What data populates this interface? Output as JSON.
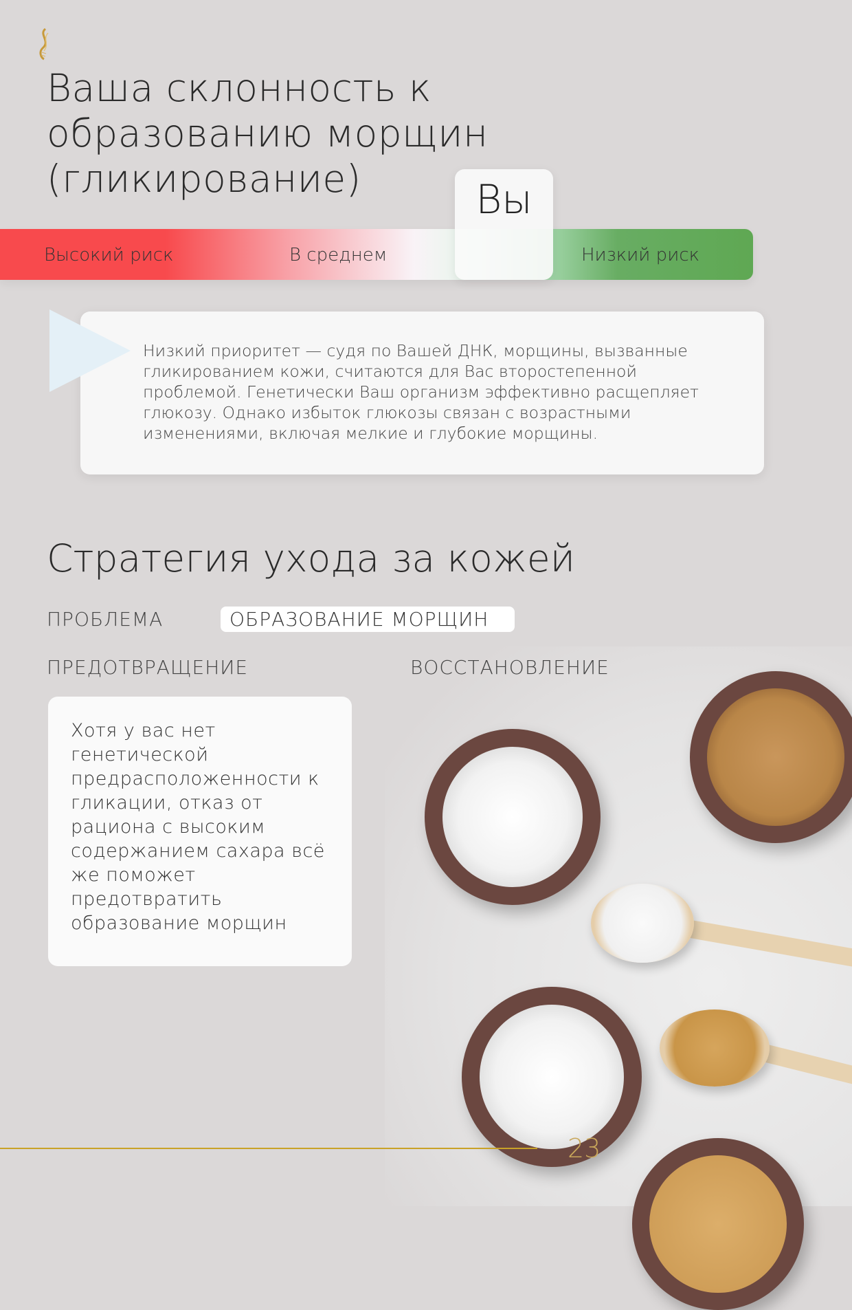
{
  "header": {
    "logo_icon": "golden-dna-helix-logo"
  },
  "title": "Ваша склонность к образованию морщин (гликирование)",
  "risk_scale": {
    "high_label": "Высокий риск",
    "average_label": "В среднем",
    "low_label": "Низкий риск",
    "you_label": "Вы",
    "you_position": "low",
    "colors": {
      "high": "#f84a4d",
      "average": "#f9f3f7",
      "low": "#5fa853"
    }
  },
  "info": {
    "icon": "play-triangle-icon",
    "text": "Низкий приоритет — судя по Вашей ДНК, морщины, вызванные гликированием кожи, считаются для Вас второстепенной проблемой. Генетически Ваш организм эффективно расщепляет глюкозу. Однако избыток глюкозы связан с возрастными изменениями, включая мелкие и глубокие морщины."
  },
  "strategy": {
    "heading": "Стратегия ухода за кожей",
    "problem_label": "ПРОБЛЕМА",
    "problem_value": "ОБРАЗОВАНИЕ МОРЩИН",
    "prevention_label": "ПРЕДОТВРАЩЕНИЕ",
    "recovery_label": "ВОССТАНОВЛЕНИЕ",
    "prevention_text": "Хотя у вас нет генетической предрасположенности к гликации, отказ от рациона с высоким содержанием сахара всё же поможет предотвратить образование морщин"
  },
  "footer": {
    "page_number": "23",
    "accent": "#c9a227"
  }
}
